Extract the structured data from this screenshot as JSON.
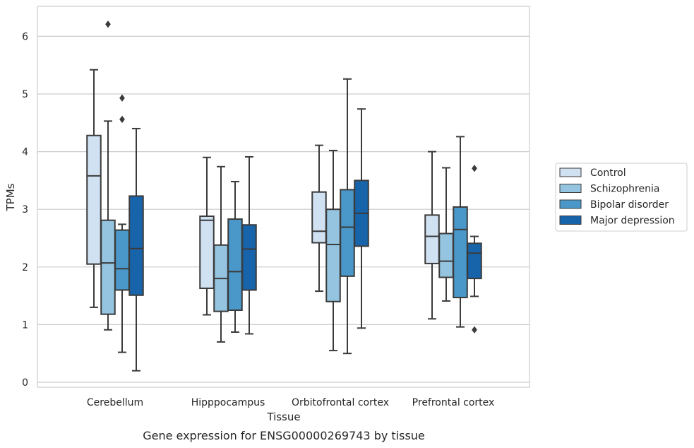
{
  "chart_data": {
    "type": "box",
    "title": "",
    "caption": "Gene expression for ENSG00000269743 by tissue",
    "xlabel": "Tissue",
    "ylabel": "TPMs",
    "ylim": [
      -0.1,
      6.5
    ],
    "yticks": [
      0,
      1,
      2,
      3,
      4,
      5,
      6
    ],
    "grid": "horizontal",
    "legend_position": "right",
    "categories": [
      "Cerebellum",
      "Hipppocampus",
      "Orbitofrontal cortex",
      "Prefrontal cortex"
    ],
    "series": [
      {
        "name": "Control",
        "color": "#d0e1f2",
        "boxes": [
          {
            "whislo": 1.3,
            "q1": 2.05,
            "med": 3.58,
            "q3": 4.28,
            "whishi": 5.42,
            "fliers": []
          },
          {
            "whislo": 1.17,
            "q1": 1.63,
            "med": 2.81,
            "q3": 2.88,
            "whishi": 3.9,
            "fliers": []
          },
          {
            "whislo": 1.58,
            "q1": 2.42,
            "med": 2.62,
            "q3": 3.3,
            "whishi": 4.11,
            "fliers": []
          },
          {
            "whislo": 1.1,
            "q1": 2.06,
            "med": 2.53,
            "q3": 2.9,
            "whishi": 4.0,
            "fliers": []
          }
        ]
      },
      {
        "name": "Schizophrenia",
        "color": "#94c4df",
        "boxes": [
          {
            "whislo": 0.91,
            "q1": 1.18,
            "med": 2.07,
            "q3": 2.81,
            "whishi": 4.53,
            "fliers": [
              6.21
            ]
          },
          {
            "whislo": 0.7,
            "q1": 1.23,
            "med": 1.8,
            "q3": 2.38,
            "whishi": 3.74,
            "fliers": []
          },
          {
            "whislo": 0.55,
            "q1": 1.4,
            "med": 2.39,
            "q3": 3.0,
            "whishi": 4.02,
            "fliers": []
          },
          {
            "whislo": 1.41,
            "q1": 1.82,
            "med": 2.1,
            "q3": 2.58,
            "whishi": 3.72,
            "fliers": []
          }
        ]
      },
      {
        "name": "Bipolar disorder",
        "color": "#4a98c9",
        "boxes": [
          {
            "whislo": 0.52,
            "q1": 1.6,
            "med": 1.97,
            "q3": 2.64,
            "whishi": 2.74,
            "fliers": [
              4.56,
              4.93
            ]
          },
          {
            "whislo": 0.87,
            "q1": 1.25,
            "med": 1.92,
            "q3": 2.83,
            "whishi": 3.48,
            "fliers": []
          },
          {
            "whislo": 0.5,
            "q1": 1.84,
            "med": 2.69,
            "q3": 3.34,
            "whishi": 5.26,
            "fliers": []
          },
          {
            "whislo": 0.96,
            "q1": 1.47,
            "med": 2.65,
            "q3": 3.04,
            "whishi": 4.26,
            "fliers": []
          }
        ]
      },
      {
        "name": "Major depression",
        "color": "#1764ab",
        "boxes": [
          {
            "whislo": 0.2,
            "q1": 1.51,
            "med": 2.32,
            "q3": 3.23,
            "whishi": 4.4,
            "fliers": []
          },
          {
            "whislo": 0.84,
            "q1": 1.6,
            "med": 2.31,
            "q3": 2.73,
            "whishi": 3.91,
            "fliers": []
          },
          {
            "whislo": 0.94,
            "q1": 2.36,
            "med": 2.93,
            "q3": 3.5,
            "whishi": 4.74,
            "fliers": []
          },
          {
            "whislo": 1.49,
            "q1": 1.8,
            "med": 2.24,
            "q3": 2.41,
            "whishi": 2.53,
            "fliers": [
              0.91,
              3.71
            ]
          }
        ]
      }
    ]
  }
}
